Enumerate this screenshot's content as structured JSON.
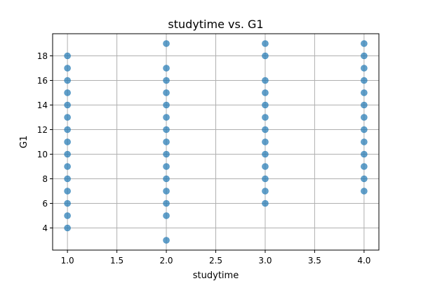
{
  "chart_data": {
    "type": "scatter",
    "title": "studytime vs. G1",
    "xlabel": "studytime",
    "ylabel": "G1",
    "xlim": [
      0.85,
      4.15
    ],
    "ylim": [
      2.2,
      19.8
    ],
    "x_ticks": [
      1.0,
      1.5,
      2.0,
      2.5,
      3.0,
      3.5,
      4.0
    ],
    "x_tick_labels": [
      "1.0",
      "1.5",
      "2.0",
      "2.5",
      "3.0",
      "3.5",
      "4.0"
    ],
    "y_ticks": [
      4,
      6,
      8,
      10,
      12,
      14,
      16,
      18
    ],
    "y_tick_labels": [
      "4",
      "6",
      "8",
      "10",
      "12",
      "14",
      "16",
      "18"
    ],
    "grid": true,
    "marker_color": "#1f77b4",
    "marker_alpha": 0.7,
    "points": [
      {
        "x": 1,
        "y": 4
      },
      {
        "x": 1,
        "y": 5
      },
      {
        "x": 1,
        "y": 6
      },
      {
        "x": 1,
        "y": 7
      },
      {
        "x": 1,
        "y": 8
      },
      {
        "x": 1,
        "y": 9
      },
      {
        "x": 1,
        "y": 10
      },
      {
        "x": 1,
        "y": 11
      },
      {
        "x": 1,
        "y": 12
      },
      {
        "x": 1,
        "y": 13
      },
      {
        "x": 1,
        "y": 14
      },
      {
        "x": 1,
        "y": 15
      },
      {
        "x": 1,
        "y": 16
      },
      {
        "x": 1,
        "y": 17
      },
      {
        "x": 1,
        "y": 18
      },
      {
        "x": 2,
        "y": 3
      },
      {
        "x": 2,
        "y": 5
      },
      {
        "x": 2,
        "y": 6
      },
      {
        "x": 2,
        "y": 7
      },
      {
        "x": 2,
        "y": 8
      },
      {
        "x": 2,
        "y": 9
      },
      {
        "x": 2,
        "y": 10
      },
      {
        "x": 2,
        "y": 11
      },
      {
        "x": 2,
        "y": 12
      },
      {
        "x": 2,
        "y": 13
      },
      {
        "x": 2,
        "y": 14
      },
      {
        "x": 2,
        "y": 15
      },
      {
        "x": 2,
        "y": 16
      },
      {
        "x": 2,
        "y": 17
      },
      {
        "x": 2,
        "y": 19
      },
      {
        "x": 3,
        "y": 6
      },
      {
        "x": 3,
        "y": 7
      },
      {
        "x": 3,
        "y": 8
      },
      {
        "x": 3,
        "y": 9
      },
      {
        "x": 3,
        "y": 10
      },
      {
        "x": 3,
        "y": 11
      },
      {
        "x": 3,
        "y": 12
      },
      {
        "x": 3,
        "y": 13
      },
      {
        "x": 3,
        "y": 14
      },
      {
        "x": 3,
        "y": 15
      },
      {
        "x": 3,
        "y": 16
      },
      {
        "x": 3,
        "y": 18
      },
      {
        "x": 3,
        "y": 19
      },
      {
        "x": 4,
        "y": 7
      },
      {
        "x": 4,
        "y": 8
      },
      {
        "x": 4,
        "y": 9
      },
      {
        "x": 4,
        "y": 10
      },
      {
        "x": 4,
        "y": 11
      },
      {
        "x": 4,
        "y": 12
      },
      {
        "x": 4,
        "y": 13
      },
      {
        "x": 4,
        "y": 14
      },
      {
        "x": 4,
        "y": 15
      },
      {
        "x": 4,
        "y": 16
      },
      {
        "x": 4,
        "y": 17
      },
      {
        "x": 4,
        "y": 18
      },
      {
        "x": 4,
        "y": 19
      }
    ]
  }
}
